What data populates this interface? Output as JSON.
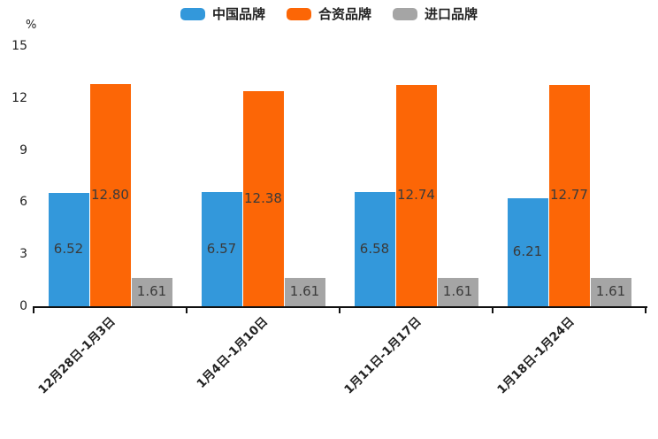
{
  "chart_data": {
    "type": "bar",
    "title": "",
    "ylabel": "%",
    "xlabel": "",
    "ylim": [
      0,
      15
    ],
    "yticks": [
      0,
      3,
      6,
      9,
      12,
      15
    ],
    "grid": false,
    "legend_position": "top-center",
    "value_label_decimals": 2,
    "categories": [
      "12月28日-1月3日",
      "1月4日-1月10日",
      "1月11日-1月17日",
      "1月18日-1月24日"
    ],
    "series": [
      {
        "key": "china-brand",
        "name": "中国品牌",
        "color": "#3398DB",
        "values": [
          6.52,
          6.57,
          6.58,
          6.21
        ]
      },
      {
        "key": "joint-venture-brand",
        "name": "合资品牌",
        "color": "#FC6606",
        "values": [
          12.8,
          12.38,
          12.74,
          12.77
        ]
      },
      {
        "key": "import-brand",
        "name": "进口品牌",
        "color": "#A5A5A5",
        "values": [
          1.61,
          1.61,
          1.61,
          1.61
        ]
      }
    ],
    "colors": {
      "axis": "#111111",
      "tick_text": "#222222",
      "value_label_text": "#3a3a3a"
    }
  }
}
